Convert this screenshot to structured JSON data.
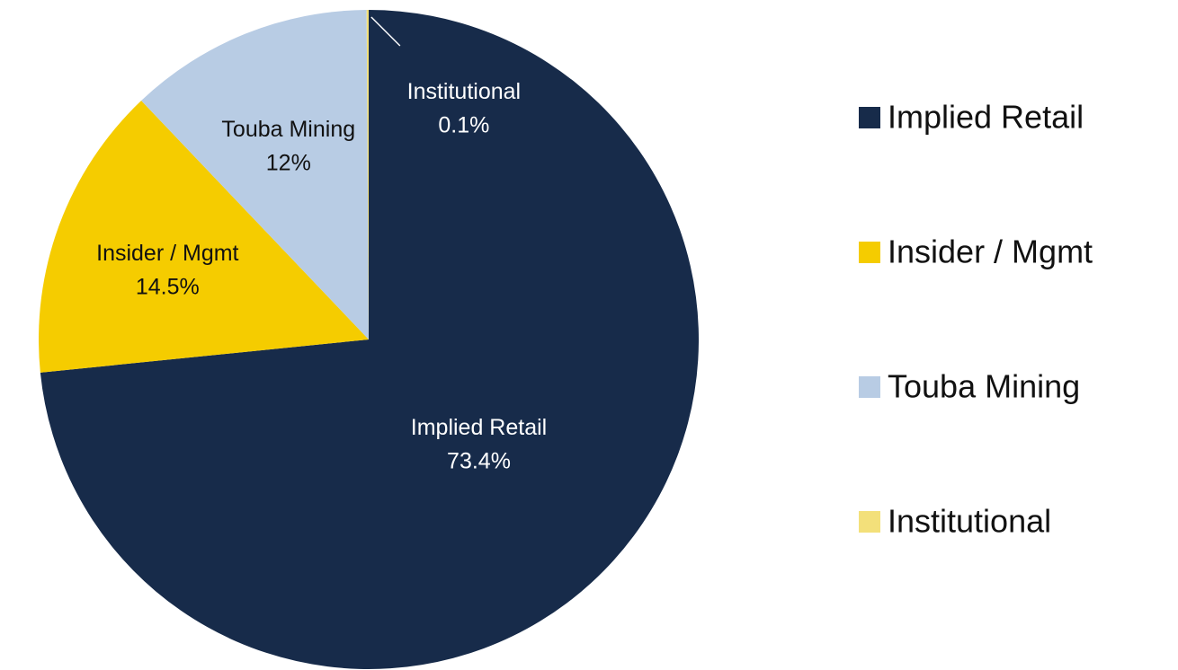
{
  "chart_data": {
    "type": "pie",
    "categories": [
      "Implied Retail",
      "Insider / Mgmt",
      "Touba Mining",
      "Institutional"
    ],
    "values": [
      73.4,
      14.5,
      12,
      0.1
    ],
    "value_labels": [
      "73.4%",
      "14.5%",
      "12%",
      "0.1%"
    ],
    "colors": [
      "#172b4a",
      "#f5cc00",
      "#b8cce4",
      "#f3e07a"
    ],
    "legend": "right"
  }
}
